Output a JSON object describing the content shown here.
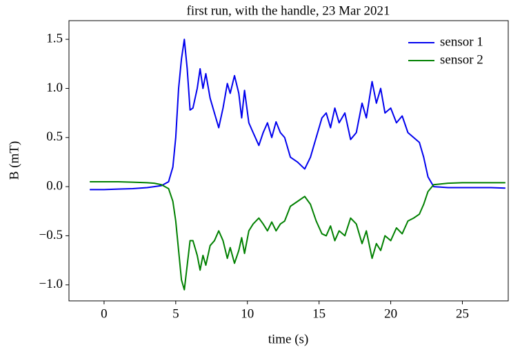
{
  "chart_data": {
    "type": "line",
    "title": "first run, with the handle, 23 Mar 2021",
    "x_label": "time (s)",
    "y_label": "B (mT)",
    "x": [
      -1,
      0,
      1,
      2,
      3,
      3.5,
      4,
      4.5,
      4.8,
      5,
      5.2,
      5.4,
      5.6,
      5.8,
      6.0,
      6.2,
      6.5,
      6.7,
      6.9,
      7.1,
      7.4,
      7.7,
      8.0,
      8.3,
      8.6,
      8.8,
      9.1,
      9.4,
      9.6,
      9.8,
      10.1,
      10.4,
      10.8,
      11.1,
      11.4,
      11.7,
      12.0,
      12.3,
      12.6,
      13.0,
      13.5,
      14.0,
      14.4,
      14.8,
      15.2,
      15.5,
      15.8,
      16.1,
      16.4,
      16.8,
      17.2,
      17.6,
      18.0,
      18.3,
      18.7,
      19.0,
      19.3,
      19.6,
      20.0,
      20.4,
      20.8,
      21.2,
      21.6,
      22.0,
      22.3,
      22.6,
      23.0,
      24,
      25,
      26,
      27,
      28
    ],
    "series": [
      {
        "name": "sensor 1",
        "color": "#0000ee",
        "values": [
          -0.03,
          -0.03,
          -0.025,
          -0.02,
          -0.01,
          0.0,
          0.01,
          0.05,
          0.2,
          0.5,
          1.0,
          1.3,
          1.5,
          1.2,
          0.78,
          0.8,
          1.0,
          1.2,
          1.0,
          1.15,
          0.9,
          0.75,
          0.6,
          0.8,
          1.05,
          0.95,
          1.13,
          0.95,
          0.7,
          0.98,
          0.65,
          0.55,
          0.42,
          0.55,
          0.65,
          0.5,
          0.66,
          0.55,
          0.5,
          0.3,
          0.25,
          0.18,
          0.3,
          0.5,
          0.7,
          0.75,
          0.6,
          0.8,
          0.65,
          0.75,
          0.48,
          0.55,
          0.85,
          0.7,
          1.07,
          0.85,
          1.0,
          0.75,
          0.8,
          0.65,
          0.72,
          0.55,
          0.5,
          0.45,
          0.3,
          0.1,
          0.0,
          -0.01,
          -0.01,
          -0.01,
          -0.01,
          -0.015
        ]
      },
      {
        "name": "sensor 2",
        "color": "#008000",
        "values": [
          0.05,
          0.05,
          0.05,
          0.045,
          0.04,
          0.035,
          0.02,
          -0.02,
          -0.15,
          -0.35,
          -0.65,
          -0.95,
          -1.05,
          -0.8,
          -0.55,
          -0.55,
          -0.7,
          -0.85,
          -0.7,
          -0.8,
          -0.6,
          -0.55,
          -0.45,
          -0.55,
          -0.73,
          -0.62,
          -0.78,
          -0.65,
          -0.52,
          -0.68,
          -0.45,
          -0.38,
          -0.32,
          -0.38,
          -0.45,
          -0.36,
          -0.45,
          -0.38,
          -0.35,
          -0.2,
          -0.15,
          -0.1,
          -0.18,
          -0.35,
          -0.48,
          -0.5,
          -0.4,
          -0.55,
          -0.45,
          -0.5,
          -0.32,
          -0.38,
          -0.58,
          -0.45,
          -0.73,
          -0.58,
          -0.65,
          -0.5,
          -0.55,
          -0.42,
          -0.48,
          -0.35,
          -0.32,
          -0.28,
          -0.18,
          -0.05,
          0.02,
          0.035,
          0.04,
          0.04,
          0.04,
          0.04
        ]
      }
    ],
    "xlim": [
      -2.45,
      28.2
    ],
    "ylim": [
      -1.163,
      1.69
    ],
    "xticks": [
      0,
      5,
      10,
      15,
      20,
      25
    ],
    "yticks": [
      {
        "value": -1.0,
        "label": "−1.0"
      },
      {
        "value": -0.5,
        "label": "−0.5"
      },
      {
        "value": 0.0,
        "label": "0.0"
      },
      {
        "value": 0.5,
        "label": "0.5"
      },
      {
        "value": 1.0,
        "label": "1.0"
      },
      {
        "value": 1.5,
        "label": "1.5"
      }
    ],
    "legend": "upper right"
  }
}
